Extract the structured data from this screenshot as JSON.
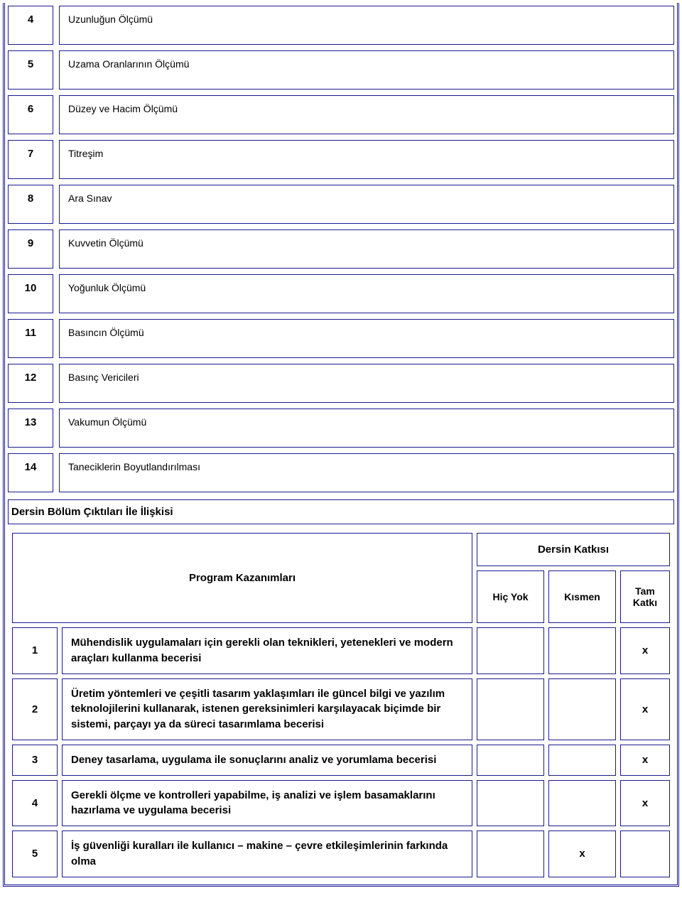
{
  "topics": [
    {
      "num": "4",
      "text": "Uzunluğun Ölçümü"
    },
    {
      "num": "5",
      "text": "Uzama Oranlarının Ölçümü"
    },
    {
      "num": "6",
      "text": "Düzey ve Hacim Ölçümü"
    },
    {
      "num": "7",
      "text": "Titreşim"
    },
    {
      "num": "8",
      "text": "Ara Sınav"
    },
    {
      "num": "9",
      "text": "Kuvvetin Ölçümü"
    },
    {
      "num": "10",
      "text": "Yoğunluk Ölçümü"
    },
    {
      "num": "11",
      "text": "Basıncın Ölçümü"
    },
    {
      "num": "12",
      "text": "Basınç Vericileri"
    },
    {
      "num": "13",
      "text": "Vakumun Ölçümü"
    },
    {
      "num": "14",
      "text": "Taneciklerin Boyutlandırılması"
    }
  ],
  "section_title": "Dersin Bölüm Çıktıları İle İlişkisi",
  "headers": {
    "program": "Program Kazanımları",
    "dersin": "Dersin Katkısı",
    "hic_yok": "Hiç Yok",
    "kismen": "Kısmen",
    "tam": "Tam Katkı"
  },
  "outcomes": [
    {
      "num": "1",
      "text": "Mühendislik uygulamaları için gerekli olan teknikleri, yetenekleri ve modern araçları kullanma becerisi",
      "hic_yok": "",
      "kismen": "",
      "tam": "x"
    },
    {
      "num": "2",
      "text": "Üretim yöntemleri ve çeşitli tasarım yaklaşımları ile güncel bilgi ve yazılım teknolojilerini kullanarak, istenen gereksinimleri karşılayacak biçimde bir sistemi, parçayı ya da süreci tasarımlama becerisi",
      "hic_yok": "",
      "kismen": "",
      "tam": "x"
    },
    {
      "num": "3",
      "text": "Deney tasarlama, uygulama ile sonuçlarını analiz ve yorumlama becerisi",
      "hic_yok": "",
      "kismen": "",
      "tam": "x"
    },
    {
      "num": "4",
      "text": "Gerekli ölçme ve kontrolleri yapabilme, iş analizi ve işlem basamaklarını hazırlama ve uygulama becerisi",
      "hic_yok": "",
      "kismen": "",
      "tam": "x"
    },
    {
      "num": "5",
      "text": "İş güvenliği kuralları ile kullanıcı – makine – çevre etkileşimlerinin farkında olma",
      "hic_yok": "",
      "kismen": "x",
      "tam": ""
    }
  ],
  "colors": {
    "border": "#1a1a8f",
    "text": "#000000",
    "background": "#ffffff"
  }
}
